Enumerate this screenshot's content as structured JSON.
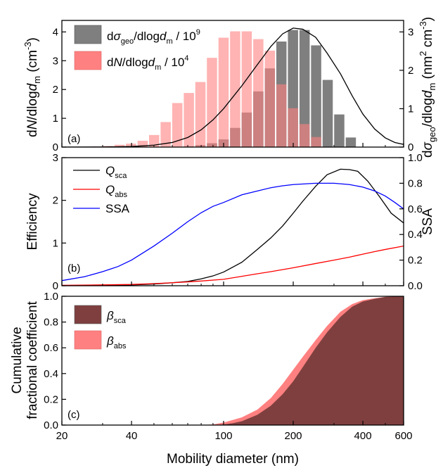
{
  "chart_data": [
    {
      "type": "bar",
      "panel_label": "(a)",
      "x_axis": {
        "scale": "log",
        "lim": [
          20,
          600
        ],
        "ticks": [
          20,
          40,
          100,
          200,
          400,
          600
        ]
      },
      "y_left": {
        "lim": [
          0,
          4.4
        ],
        "ticks": [
          "0",
          "1",
          "2",
          "3",
          "4"
        ],
        "label": "dN/dlogd_m (cm^-3)"
      },
      "y_right": {
        "lim": [
          0,
          3.3
        ],
        "ticks": [
          "0",
          "1",
          "2",
          "3"
        ],
        "label": "dσ_geo/dlogd_m (nm^2 cm^-3)"
      },
      "bin_centers": [
        22.4,
        25.1,
        28.2,
        31.6,
        35.5,
        39.8,
        44.7,
        50.1,
        56.2,
        63.1,
        70.8,
        79.4,
        89.1,
        100,
        112.2,
        125.9,
        141.3,
        158.5,
        177.8,
        199.5,
        223.9,
        251.2,
        281.8,
        316.2,
        354.8
      ],
      "series": [
        {
          "name": "dσ_geo/dlogd_m / 10^9",
          "axis": "right",
          "color": "#7f7f7f",
          "values": [
            0,
            0,
            0,
            0,
            0,
            0,
            0,
            0,
            0,
            0,
            0.02,
            0.05,
            0.1,
            0.2,
            0.5,
            0.9,
            1.45,
            2.05,
            2.75,
            3.05,
            3.05,
            2.65,
            1.75,
            0.85,
            0.25
          ]
        },
        {
          "name": "dN/dlogd_m / 10^4",
          "axis": "left",
          "color": "#ff8080",
          "values": [
            0,
            0.01,
            0.02,
            0.04,
            0.08,
            0.12,
            0.22,
            0.42,
            0.87,
            1.53,
            1.88,
            2.26,
            3.1,
            3.8,
            4.02,
            4.02,
            3.75,
            3.35,
            2.18,
            1.35,
            0.8,
            0.35,
            0,
            0,
            0
          ]
        }
      ],
      "fit_curve": {
        "color": "#000000",
        "x": [
          20,
          30,
          40,
          50,
          60,
          70,
          80,
          90,
          100,
          120,
          140,
          160,
          180,
          200,
          220,
          250,
          280,
          320,
          360,
          400,
          450,
          500,
          550,
          600
        ],
        "y": [
          0,
          0.002,
          0.015,
          0.05,
          0.12,
          0.25,
          0.45,
          0.71,
          1.0,
          1.6,
          2.15,
          2.62,
          2.95,
          3.1,
          3.07,
          2.86,
          2.45,
          1.91,
          1.33,
          0.86,
          0.47,
          0.24,
          0.12,
          0.07
        ]
      },
      "legend_position": "top-left"
    },
    {
      "type": "line",
      "panel_label": "(b)",
      "x_axis": {
        "scale": "log",
        "lim": [
          20,
          600
        ],
        "ticks": [
          20,
          40,
          100,
          200,
          400,
          600
        ]
      },
      "y_left": {
        "lim": [
          0,
          3
        ],
        "ticks": [
          "0",
          "1",
          "2",
          "3"
        ],
        "label": "Efficiency"
      },
      "y_right": {
        "lim": [
          0,
          1.0
        ],
        "ticks": [
          "0.0",
          "0.2",
          "0.4",
          "0.6",
          "0.8",
          "1.0"
        ],
        "label": "SSA"
      },
      "series": [
        {
          "name": "Q_sca",
          "axis": "left",
          "color": "#000000",
          "x": [
            20,
            30,
            40,
            50,
            60,
            70,
            80,
            90,
            100,
            120,
            140,
            160,
            180,
            200,
            220,
            250,
            280,
            320,
            350,
            380,
            420,
            470,
            530,
            600
          ],
          "y": [
            0,
            0.01,
            0.02,
            0.04,
            0.07,
            0.1,
            0.16,
            0.23,
            0.32,
            0.55,
            0.85,
            1.12,
            1.4,
            1.7,
            1.98,
            2.33,
            2.6,
            2.73,
            2.72,
            2.68,
            2.45,
            2.1,
            1.7,
            1.47
          ]
        },
        {
          "name": "Q_abs",
          "axis": "left",
          "color": "#ff0000",
          "x": [
            20,
            30,
            40,
            50,
            60,
            70,
            80,
            100,
            120,
            140,
            160,
            200,
            250,
            300,
            350,
            400,
            450,
            500,
            600
          ],
          "y": [
            0.01,
            0.02,
            0.03,
            0.05,
            0.07,
            0.09,
            0.11,
            0.15,
            0.22,
            0.28,
            0.33,
            0.42,
            0.52,
            0.6,
            0.67,
            0.74,
            0.8,
            0.85,
            0.93
          ]
        },
        {
          "name": "SSA",
          "axis": "right",
          "color": "#0000ff",
          "x": [
            20,
            25,
            30,
            35,
            40,
            50,
            60,
            70,
            80,
            90,
            100,
            120,
            140,
            160,
            180,
            200,
            250,
            300,
            350,
            400,
            450,
            500,
            550,
            600
          ],
          "y": [
            0.04,
            0.07,
            0.11,
            0.15,
            0.2,
            0.31,
            0.41,
            0.5,
            0.57,
            0.62,
            0.65,
            0.71,
            0.74,
            0.765,
            0.78,
            0.79,
            0.8,
            0.8,
            0.79,
            0.77,
            0.74,
            0.7,
            0.65,
            0.6
          ]
        }
      ],
      "legend_position": "top-left"
    },
    {
      "type": "area",
      "panel_label": "(c)",
      "x_axis": {
        "scale": "log",
        "lim": [
          20,
          600
        ],
        "ticks": [
          20,
          40,
          100,
          200,
          400,
          600
        ],
        "label": "Mobility diameter (nm)"
      },
      "y_left": {
        "lim": [
          0,
          1.0
        ],
        "ticks": [
          "0.0",
          "0.2",
          "0.4",
          "0.6",
          "0.8",
          "1.0"
        ],
        "label_line1": "Cumulative",
        "label_line2": "fractional coefficient"
      },
      "series": [
        {
          "name": "β_abs",
          "color": "#ff8080",
          "x": [
            20,
            80,
            90,
            100,
            110,
            120,
            140,
            160,
            180,
            200,
            220,
            250,
            280,
            320,
            360,
            400,
            450,
            500,
            600
          ],
          "y": [
            0,
            0,
            0.005,
            0.02,
            0.04,
            0.06,
            0.12,
            0.21,
            0.32,
            0.43,
            0.53,
            0.66,
            0.77,
            0.88,
            0.94,
            0.97,
            0.985,
            0.995,
            1.0
          ]
        },
        {
          "name": "β_sca",
          "color": "#7f3f3f",
          "x": [
            20,
            90,
            100,
            110,
            120,
            140,
            160,
            180,
            200,
            220,
            250,
            280,
            320,
            360,
            400,
            450,
            500,
            600
          ],
          "y": [
            0,
            0,
            0.005,
            0.015,
            0.03,
            0.08,
            0.15,
            0.24,
            0.34,
            0.45,
            0.6,
            0.72,
            0.84,
            0.92,
            0.96,
            0.98,
            0.995,
            1.0
          ]
        }
      ],
      "legend_position": "top-left"
    }
  ]
}
